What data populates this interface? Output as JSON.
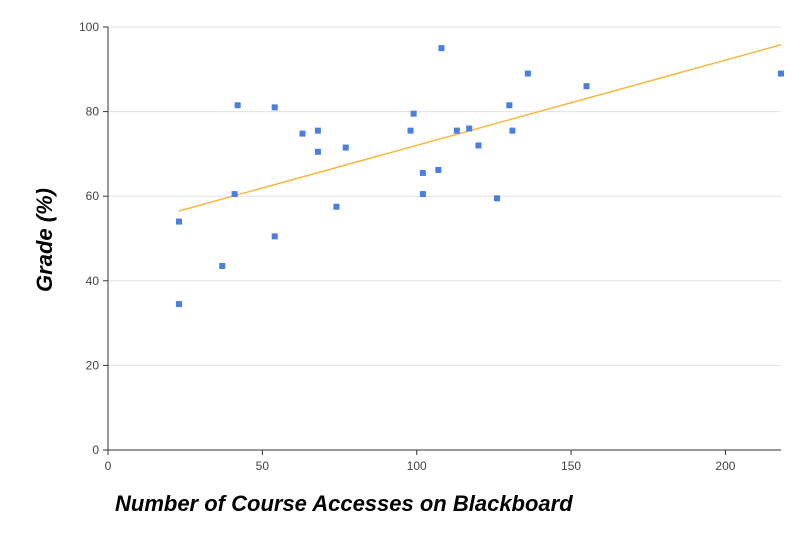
{
  "chart_data": {
    "type": "scatter",
    "title": "",
    "xlabel": "Number of Course Accesses on Blackboard",
    "ylabel": "Grade (%)",
    "xlim": [
      0,
      218
    ],
    "ylim": [
      0,
      100
    ],
    "x_ticks": [
      0,
      50,
      100,
      150,
      200
    ],
    "y_ticks": [
      0,
      20,
      40,
      60,
      80,
      100
    ],
    "grid": "horizontal",
    "legend": "none",
    "colors": {
      "point": "#4a7fe0",
      "trendline": "#f5b845",
      "grid": "#e0e0e0",
      "axis": "#333333"
    },
    "series": [
      {
        "points": [
          [
            23,
            54
          ],
          [
            23,
            34.5
          ],
          [
            37,
            43.5
          ],
          [
            41,
            60.5
          ],
          [
            42,
            81.5
          ],
          [
            54,
            81
          ],
          [
            54,
            50.5
          ],
          [
            63,
            74.8
          ],
          [
            68,
            75.5
          ],
          [
            68,
            70.5
          ],
          [
            74,
            57.5
          ],
          [
            77,
            71.5
          ],
          [
            98,
            75.5
          ],
          [
            99,
            79.5
          ],
          [
            102,
            65.5
          ],
          [
            102,
            60.5
          ],
          [
            107,
            66.2
          ],
          [
            108,
            95
          ],
          [
            113,
            75.5
          ],
          [
            117,
            76
          ],
          [
            120,
            72
          ],
          [
            126,
            59.5
          ],
          [
            130,
            81.5
          ],
          [
            131,
            75.5
          ],
          [
            136,
            89
          ],
          [
            155,
            86
          ],
          [
            218,
            89
          ]
        ]
      }
    ],
    "trendline": {
      "x": [
        23,
        218
      ],
      "y": [
        56.5,
        95.8
      ]
    }
  }
}
